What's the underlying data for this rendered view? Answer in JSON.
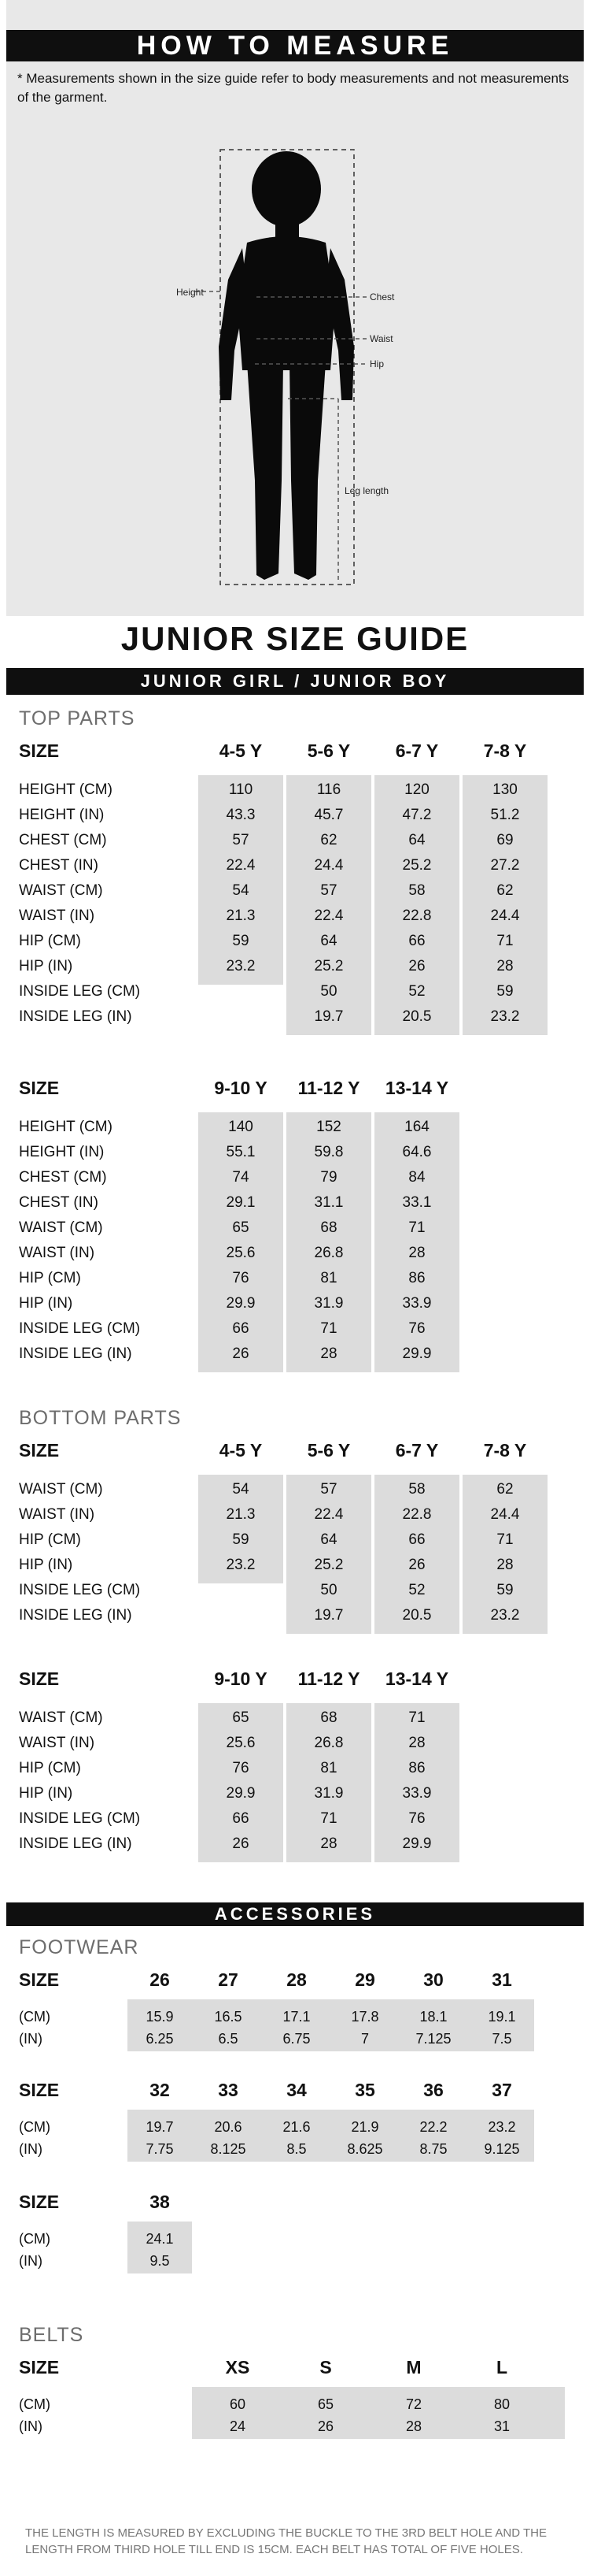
{
  "measure": {
    "title": "HOW TO MEASURE",
    "note": "* Measurements shown in the size guide refer to body measurements and not measurements of the garment.",
    "labels": {
      "height": "Height",
      "chest": "Chest",
      "waist": "Waist",
      "hip": "Hip",
      "leg": "Leg length"
    }
  },
  "guide_title": "JUNIOR SIZE GUIDE",
  "gender_bar": "JUNIOR GIRL / JUNIOR BOY",
  "top_parts": {
    "heading": "TOP PARTS",
    "table1": {
      "size_label": "SIZE",
      "sizes": [
        "4-5 Y",
        "5-6 Y",
        "6-7 Y",
        "7-8 Y"
      ],
      "rows": [
        {
          "label": "HEIGHT (CM)",
          "values": [
            "110",
            "116",
            "120",
            "130"
          ]
        },
        {
          "label": "HEIGHT (IN)",
          "values": [
            "43.3",
            "45.7",
            "47.2",
            "51.2"
          ]
        },
        {
          "label": "CHEST (CM)",
          "values": [
            "57",
            "62",
            "64",
            "69"
          ]
        },
        {
          "label": "CHEST (IN)",
          "values": [
            "22.4",
            "24.4",
            "25.2",
            "27.2"
          ]
        },
        {
          "label": "WAIST (CM)",
          "values": [
            "54",
            "57",
            "58",
            "62"
          ]
        },
        {
          "label": "WAIST (IN)",
          "values": [
            "21.3",
            "22.4",
            "22.8",
            "24.4"
          ]
        },
        {
          "label": "HIP (CM)",
          "values": [
            "59",
            "64",
            "66",
            "71"
          ]
        },
        {
          "label": "HIP (IN)",
          "values": [
            "23.2",
            "25.2",
            "26",
            "28"
          ]
        },
        {
          "label": "INSIDE LEG (CM)",
          "values": [
            "",
            "50",
            "52",
            "59"
          ]
        },
        {
          "label": "INSIDE LEG (IN)",
          "values": [
            "",
            "19.7",
            "20.5",
            "23.2"
          ]
        }
      ]
    },
    "table2": {
      "size_label": "SIZE",
      "sizes": [
        "9-10 Y",
        "11-12 Y",
        "13-14 Y"
      ],
      "rows": [
        {
          "label": "HEIGHT (CM)",
          "values": [
            "140",
            "152",
            "164"
          ]
        },
        {
          "label": "HEIGHT (IN)",
          "values": [
            "55.1",
            "59.8",
            "64.6"
          ]
        },
        {
          "label": "CHEST (CM)",
          "values": [
            "74",
            "79",
            "84"
          ]
        },
        {
          "label": "CHEST (IN)",
          "values": [
            "29.1",
            "31.1",
            "33.1"
          ]
        },
        {
          "label": "WAIST (CM)",
          "values": [
            "65",
            "68",
            "71"
          ]
        },
        {
          "label": "WAIST (IN)",
          "values": [
            "25.6",
            "26.8",
            "28"
          ]
        },
        {
          "label": "HIP (CM)",
          "values": [
            "76",
            "81",
            "86"
          ]
        },
        {
          "label": "HIP (IN)",
          "values": [
            "29.9",
            "31.9",
            "33.9"
          ]
        },
        {
          "label": "INSIDE LEG (CM)",
          "values": [
            "66",
            "71",
            "76"
          ]
        },
        {
          "label": "INSIDE LEG (IN)",
          "values": [
            "26",
            "28",
            "29.9"
          ]
        }
      ]
    }
  },
  "bottom_parts": {
    "heading": "BOTTOM PARTS",
    "table1": {
      "size_label": "SIZE",
      "sizes": [
        "4-5 Y",
        "5-6 Y",
        "6-7 Y",
        "7-8 Y"
      ],
      "rows": [
        {
          "label": "WAIST (CM)",
          "values": [
            "54",
            "57",
            "58",
            "62"
          ]
        },
        {
          "label": "WAIST (IN)",
          "values": [
            "21.3",
            "22.4",
            "22.8",
            "24.4"
          ]
        },
        {
          "label": "HIP (CM)",
          "values": [
            "59",
            "64",
            "66",
            "71"
          ]
        },
        {
          "label": "HIP (IN)",
          "values": [
            "23.2",
            "25.2",
            "26",
            "28"
          ]
        },
        {
          "label": "INSIDE LEG (CM)",
          "values": [
            "",
            "50",
            "52",
            "59"
          ]
        },
        {
          "label": "INSIDE LEG (IN)",
          "values": [
            "",
            "19.7",
            "20.5",
            "23.2"
          ]
        }
      ]
    },
    "table2": {
      "size_label": "SIZE",
      "sizes": [
        "9-10 Y",
        "11-12 Y",
        "13-14 Y"
      ],
      "rows": [
        {
          "label": "WAIST (CM)",
          "values": [
            "65",
            "68",
            "71"
          ]
        },
        {
          "label": "WAIST (IN)",
          "values": [
            "25.6",
            "26.8",
            "28"
          ]
        },
        {
          "label": "HIP (CM)",
          "values": [
            "76",
            "81",
            "86"
          ]
        },
        {
          "label": "HIP (IN)",
          "values": [
            "29.9",
            "31.9",
            "33.9"
          ]
        },
        {
          "label": "INSIDE LEG (CM)",
          "values": [
            "66",
            "71",
            "76"
          ]
        },
        {
          "label": "INSIDE LEG (IN)",
          "values": [
            "26",
            "28",
            "29.9"
          ]
        }
      ]
    }
  },
  "accessories_bar": "ACCESSORIES",
  "footwear": {
    "heading": "FOOTWEAR",
    "groups": [
      {
        "size_label": "SIZE",
        "sizes": [
          "26",
          "27",
          "28",
          "29",
          "30",
          "31"
        ],
        "cm_label": "(CM)",
        "cm": [
          "15.9",
          "16.5",
          "17.1",
          "17.8",
          "18.1",
          "19.1"
        ],
        "in_label": "(IN)",
        "in": [
          "6.25",
          "6.5",
          "6.75",
          "7",
          "7.125",
          "7.5"
        ]
      },
      {
        "size_label": "SIZE",
        "sizes": [
          "32",
          "33",
          "34",
          "35",
          "36",
          "37"
        ],
        "cm_label": "(CM)",
        "cm": [
          "19.7",
          "20.6",
          "21.6",
          "21.9",
          "22.2",
          "23.2"
        ],
        "in_label": "(IN)",
        "in": [
          "7.75",
          "8.125",
          "8.5",
          "8.625",
          "8.75",
          "9.125"
        ]
      },
      {
        "size_label": "SIZE",
        "sizes": [
          "38"
        ],
        "cm_label": "(CM)",
        "cm": [
          "24.1"
        ],
        "in_label": "(IN)",
        "in": [
          "9.5"
        ]
      }
    ]
  },
  "belts": {
    "heading": "BELTS",
    "size_label": "SIZE",
    "sizes": [
      "XS",
      "S",
      "M",
      "L"
    ],
    "cm_label": "(CM)",
    "cm": [
      "60",
      "65",
      "72",
      "80"
    ],
    "in_label": "(IN)",
    "in": [
      "24",
      "26",
      "28",
      "31"
    ],
    "note": "THE LENGTH IS MEASURED BY EXCLUDING THE BUCKLE TO THE 3RD BELT HOLE AND THE LENGTH FROM THIRD HOLE TILL END IS 15CM. EACH BELT HAS TOTAL OF FIVE HOLES."
  }
}
